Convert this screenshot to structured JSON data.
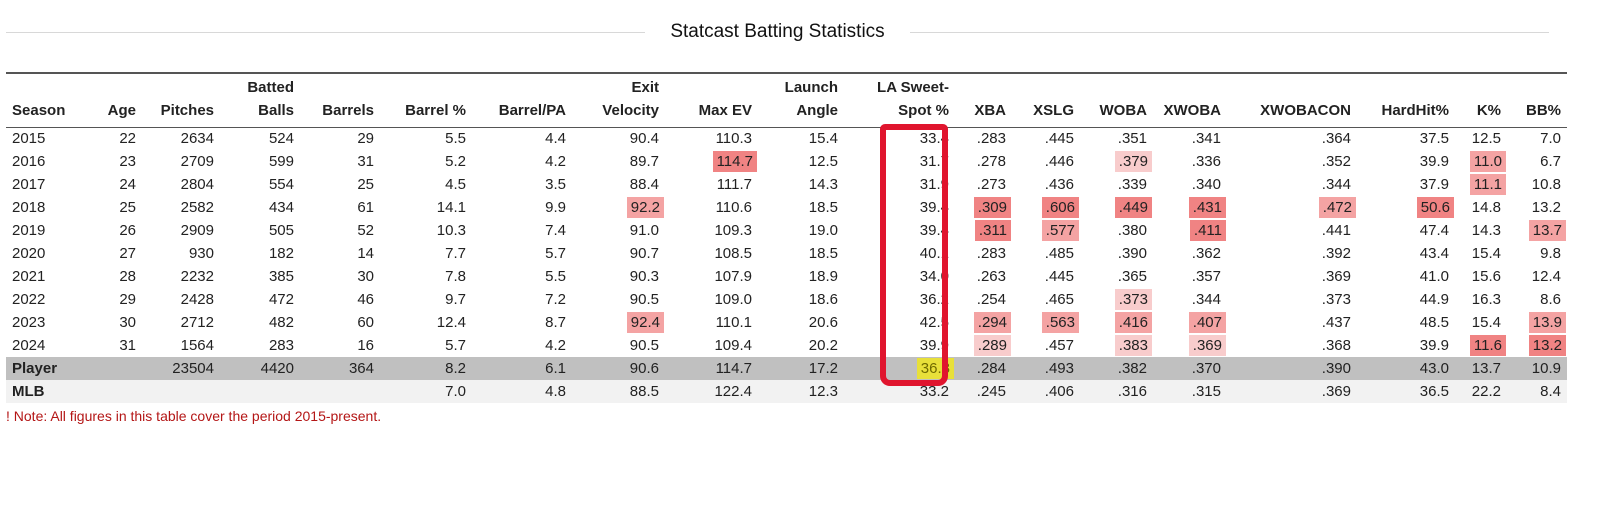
{
  "title": "Statcast Batting Statistics",
  "headers": [
    {
      "key": "season",
      "line1": "",
      "line2": "Season",
      "align": "left"
    },
    {
      "key": "age",
      "line1": "",
      "line2": "Age"
    },
    {
      "key": "pitches",
      "line1": "",
      "line2": "Pitches"
    },
    {
      "key": "batted_balls",
      "line1": "Batted",
      "line2": "Balls"
    },
    {
      "key": "barrels",
      "line1": "",
      "line2": "Barrels"
    },
    {
      "key": "barrel_pct",
      "line1": "",
      "line2": "Barrel %"
    },
    {
      "key": "barrel_pa",
      "line1": "",
      "line2": "Barrel/PA"
    },
    {
      "key": "exit_velocity",
      "line1": "Exit",
      "line2": "Velocity"
    },
    {
      "key": "max_ev",
      "line1": "",
      "line2": "Max EV"
    },
    {
      "key": "launch_angle",
      "line1": "Launch",
      "line2": "Angle"
    },
    {
      "key": "la_sweet_spot",
      "line1": "LA Sweet-",
      "line2": "Spot %"
    },
    {
      "key": "xba",
      "line1": "",
      "line2": "XBA"
    },
    {
      "key": "xslg",
      "line1": "",
      "line2": "XSLG"
    },
    {
      "key": "woba",
      "line1": "",
      "line2": "WOBA"
    },
    {
      "key": "xwoba",
      "line1": "",
      "line2": "XWOBA"
    },
    {
      "key": "xwobacon",
      "line1": "",
      "line2": "XWOBACON"
    },
    {
      "key": "hardhit",
      "line1": "",
      "line2": "HardHit%"
    },
    {
      "key": "k_pct",
      "line1": "",
      "line2": "K%"
    },
    {
      "key": "bb_pct",
      "line1": "",
      "line2": "BB%"
    }
  ],
  "highlight_colors": {
    "strong": "#f08383",
    "medium": "#f4a3a3",
    "light": "#f8cccc",
    "player_sweet_spot": "#e8e03a",
    "annotation_box": "#e0152e",
    "note_text": "#b41616"
  },
  "rows": [
    {
      "type": "season",
      "cells": [
        "2015",
        "22",
        "2634",
        "524",
        "29",
        "5.5",
        "4.4",
        "90.4",
        "110.3",
        "15.4",
        "33.4",
        ".283",
        ".445",
        ".351",
        ".341",
        ".364",
        "37.5",
        "12.5",
        "7.0"
      ],
      "hl": {}
    },
    {
      "type": "season",
      "cells": [
        "2016",
        "23",
        "2709",
        "599",
        "31",
        "5.2",
        "4.2",
        "89.7",
        "114.7",
        "12.5",
        "31.7",
        ".278",
        ".446",
        ".379",
        ".336",
        ".352",
        "39.9",
        "11.0",
        "6.7"
      ],
      "hl": {
        "8": "strong",
        "13": "light",
        "17": "medium"
      }
    },
    {
      "type": "season",
      "cells": [
        "2017",
        "24",
        "2804",
        "554",
        "25",
        "4.5",
        "3.5",
        "88.4",
        "111.7",
        "14.3",
        "31.9",
        ".273",
        ".436",
        ".339",
        ".340",
        ".344",
        "37.9",
        "11.1",
        "10.8"
      ],
      "hl": {
        "17": "medium"
      }
    },
    {
      "type": "season",
      "cells": [
        "2018",
        "25",
        "2582",
        "434",
        "61",
        "14.1",
        "9.9",
        "92.2",
        "110.6",
        "18.5",
        "39.4",
        ".309",
        ".606",
        ".449",
        ".431",
        ".472",
        "50.6",
        "14.8",
        "13.2"
      ],
      "hl": {
        "7": "medium",
        "11": "strong",
        "12": "strong",
        "13": "strong",
        "14": "strong",
        "15": "medium",
        "16": "strong"
      }
    },
    {
      "type": "season",
      "cells": [
        "2019",
        "26",
        "2909",
        "505",
        "52",
        "10.3",
        "7.4",
        "91.0",
        "109.3",
        "19.0",
        "39.4",
        ".311",
        ".577",
        ".380",
        ".411",
        ".441",
        "47.4",
        "14.3",
        "13.7"
      ],
      "hl": {
        "11": "strong",
        "12": "medium",
        "14": "strong",
        "18": "medium"
      }
    },
    {
      "type": "season",
      "cells": [
        "2020",
        "27",
        "930",
        "182",
        "14",
        "7.7",
        "5.7",
        "90.7",
        "108.5",
        "18.5",
        "40.1",
        ".283",
        ".485",
        ".390",
        ".362",
        ".392",
        "43.4",
        "15.4",
        "9.8"
      ],
      "hl": {}
    },
    {
      "type": "season",
      "cells": [
        "2021",
        "28",
        "2232",
        "385",
        "30",
        "7.8",
        "5.5",
        "90.3",
        "107.9",
        "18.9",
        "34.0",
        ".263",
        ".445",
        ".365",
        ".357",
        ".369",
        "41.0",
        "15.6",
        "12.4"
      ],
      "hl": {}
    },
    {
      "type": "season",
      "cells": [
        "2022",
        "29",
        "2428",
        "472",
        "46",
        "9.7",
        "7.2",
        "90.5",
        "109.0",
        "18.6",
        "36.2",
        ".254",
        ".465",
        ".373",
        ".344",
        ".373",
        "44.9",
        "16.3",
        "8.6"
      ],
      "hl": {
        "13": "light"
      }
    },
    {
      "type": "season",
      "cells": [
        "2023",
        "30",
        "2712",
        "482",
        "60",
        "12.4",
        "8.7",
        "92.4",
        "110.1",
        "20.6",
        "42.5",
        ".294",
        ".563",
        ".416",
        ".407",
        ".437",
        "48.5",
        "15.4",
        "13.9"
      ],
      "hl": {
        "7": "medium",
        "11": "medium",
        "12": "medium",
        "13": "medium",
        "14": "medium",
        "18": "medium"
      }
    },
    {
      "type": "season",
      "cells": [
        "2024",
        "31",
        "1564",
        "283",
        "16",
        "5.7",
        "4.2",
        "90.5",
        "109.4",
        "20.2",
        "39.9",
        ".289",
        ".457",
        ".383",
        ".369",
        ".368",
        "39.9",
        "11.6",
        "13.2"
      ],
      "hl": {
        "11": "light",
        "13": "light",
        "14": "light",
        "17": "strong",
        "18": "strong"
      }
    },
    {
      "type": "player",
      "cells": [
        "Player",
        "",
        "23504",
        "4420",
        "364",
        "8.2",
        "6.1",
        "90.6",
        "114.7",
        "17.2",
        "36.3",
        ".284",
        ".493",
        ".382",
        ".370",
        ".390",
        "43.0",
        "13.7",
        "10.9"
      ],
      "hl": {}
    },
    {
      "type": "mlb",
      "cells": [
        "MLB",
        "",
        "",
        "",
        "",
        "7.0",
        "4.8",
        "88.5",
        "122.4",
        "12.3",
        "33.2",
        ".245",
        ".406",
        ".316",
        ".315",
        ".369",
        "36.5",
        "22.2",
        "8.4"
      ],
      "hl": {}
    }
  ],
  "note": "! Note: All figures in this table cover the period 2015-present."
}
